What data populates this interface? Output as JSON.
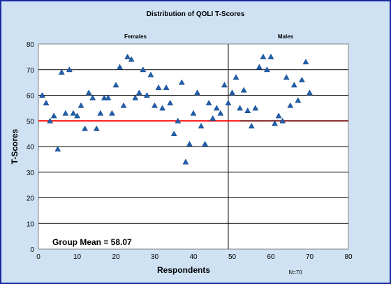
{
  "chart_data": {
    "type": "scatter",
    "title": "Distribution of QOLI T-Scores",
    "xlabel": "Respondents",
    "ylabel": "T-Scores",
    "xlim": [
      0,
      80
    ],
    "ylim": [
      0,
      80
    ],
    "xticks": [
      0,
      10,
      20,
      30,
      40,
      50,
      60,
      70,
      80
    ],
    "yticks": [
      0,
      10,
      20,
      30,
      40,
      50,
      60,
      70,
      80
    ],
    "grid": "horizontal",
    "groups": [
      {
        "label": "Females",
        "x_center": 25
      },
      {
        "label": "Males",
        "x_center": 63
      }
    ],
    "divider_x": 49,
    "annotation": "Group Mean = 58.07",
    "footnote": "N=70",
    "reference_line": {
      "y": 50,
      "color": "#ff0000",
      "x_range": [
        0,
        52
      ]
    },
    "males_line": {
      "y": 50,
      "color": "#7b1515",
      "x_range": [
        52,
        80
      ]
    },
    "marker_color": "#1f5fae",
    "points": [
      [
        1,
        60
      ],
      [
        2,
        57
      ],
      [
        3,
        50
      ],
      [
        4,
        52
      ],
      [
        5,
        39
      ],
      [
        6,
        69
      ],
      [
        7,
        53
      ],
      [
        8,
        70
      ],
      [
        9,
        53
      ],
      [
        10,
        52
      ],
      [
        11,
        56
      ],
      [
        12,
        47
      ],
      [
        13,
        61
      ],
      [
        14,
        59
      ],
      [
        15,
        47
      ],
      [
        16,
        53
      ],
      [
        17,
        59
      ],
      [
        18,
        59
      ],
      [
        19,
        53
      ],
      [
        20,
        64
      ],
      [
        21,
        71
      ],
      [
        22,
        56
      ],
      [
        23,
        75
      ],
      [
        24,
        74
      ],
      [
        25,
        59
      ],
      [
        26,
        61
      ],
      [
        27,
        70
      ],
      [
        28,
        60
      ],
      [
        29,
        68
      ],
      [
        30,
        56
      ],
      [
        31,
        63
      ],
      [
        32,
        55
      ],
      [
        33,
        63
      ],
      [
        34,
        57
      ],
      [
        35,
        45
      ],
      [
        36,
        50
      ],
      [
        37,
        65
      ],
      [
        38,
        34
      ],
      [
        39,
        41
      ],
      [
        40,
        53
      ],
      [
        41,
        61
      ],
      [
        42,
        48
      ],
      [
        43,
        41
      ],
      [
        44,
        57
      ],
      [
        45,
        51
      ],
      [
        46,
        55
      ],
      [
        47,
        53
      ],
      [
        48,
        64
      ],
      [
        49,
        57
      ],
      [
        50,
        61
      ],
      [
        51,
        67
      ],
      [
        52,
        55
      ],
      [
        53,
        62
      ],
      [
        54,
        54
      ],
      [
        55,
        48
      ],
      [
        56,
        55
      ],
      [
        57,
        71
      ],
      [
        58,
        75
      ],
      [
        59,
        70
      ],
      [
        60,
        75
      ],
      [
        61,
        49
      ],
      [
        62,
        52
      ],
      [
        63,
        50
      ],
      [
        64,
        67
      ],
      [
        65,
        56
      ],
      [
        66,
        64
      ],
      [
        67,
        58
      ],
      [
        68,
        66
      ],
      [
        69,
        73
      ],
      [
        70,
        61
      ]
    ]
  }
}
